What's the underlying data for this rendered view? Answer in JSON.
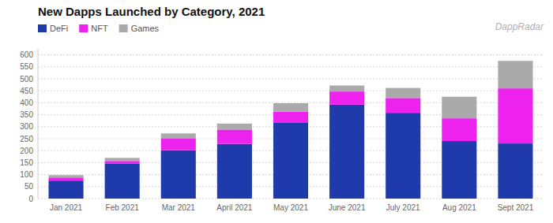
{
  "chart_data": {
    "type": "bar",
    "title": "New Dapps Launched by Category, 2021",
    "categories": [
      "Jan 2021",
      "Feb 2021",
      "Mar 2021",
      "April 2021",
      "May 2021",
      "June 2021",
      "July 2021",
      "Aug 2021",
      "Sept 2021"
    ],
    "series": [
      {
        "name": "DeFi",
        "color": "#1f3aaa",
        "values": [
          75,
          145,
          202,
          228,
          318,
          392,
          358,
          240,
          230
        ]
      },
      {
        "name": "NFT",
        "color": "#ee22ee",
        "values": [
          13,
          12,
          50,
          60,
          45,
          55,
          62,
          95,
          230
        ]
      },
      {
        "name": "Games",
        "color": "#aaaaaa",
        "values": [
          10,
          13,
          20,
          25,
          35,
          25,
          42,
          90,
          115
        ]
      }
    ],
    "ylim": [
      0,
      625
    ],
    "yticks": [
      0,
      50,
      100,
      150,
      200,
      250,
      300,
      350,
      400,
      450,
      500,
      550,
      600
    ],
    "grid": true,
    "stacked": true,
    "legend": "upper left",
    "annotations": [
      "DappRadar"
    ]
  }
}
